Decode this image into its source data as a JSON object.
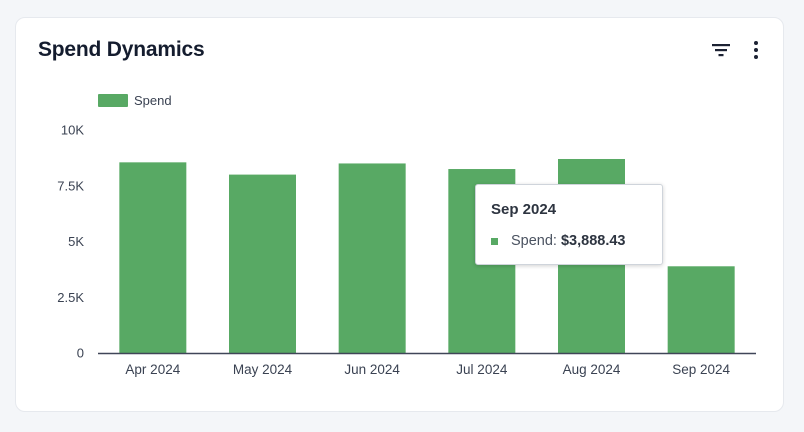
{
  "card": {
    "title": "Spend Dynamics"
  },
  "icons": {
    "filter": "filter-icon",
    "menu": "more-vertical-icon"
  },
  "colors": {
    "bar": "#58a964",
    "axis": "#404658",
    "tick_text": "#3a4252"
  },
  "chart_data": {
    "type": "bar",
    "title": "Spend Dynamics",
    "categories": [
      "Apr 2024",
      "May 2024",
      "Jun 2024",
      "Jul 2024",
      "Aug 2024",
      "Sep 2024"
    ],
    "series": [
      {
        "name": "Spend",
        "values": [
          8550,
          8000,
          8500,
          8250,
          8700,
          3888.43
        ]
      }
    ],
    "y_ticks": [
      0,
      2500,
      5000,
      7500,
      10000
    ],
    "y_tick_labels": [
      "0",
      "2.5K",
      "5K",
      "7.5K",
      "10K"
    ],
    "ylim": [
      0,
      10000
    ],
    "xlabel": "",
    "ylabel": "",
    "legend": "top-left",
    "grid": false
  },
  "tooltip": {
    "title": "Sep 2024",
    "series_label": "Spend:",
    "value": "$3,888.43"
  }
}
